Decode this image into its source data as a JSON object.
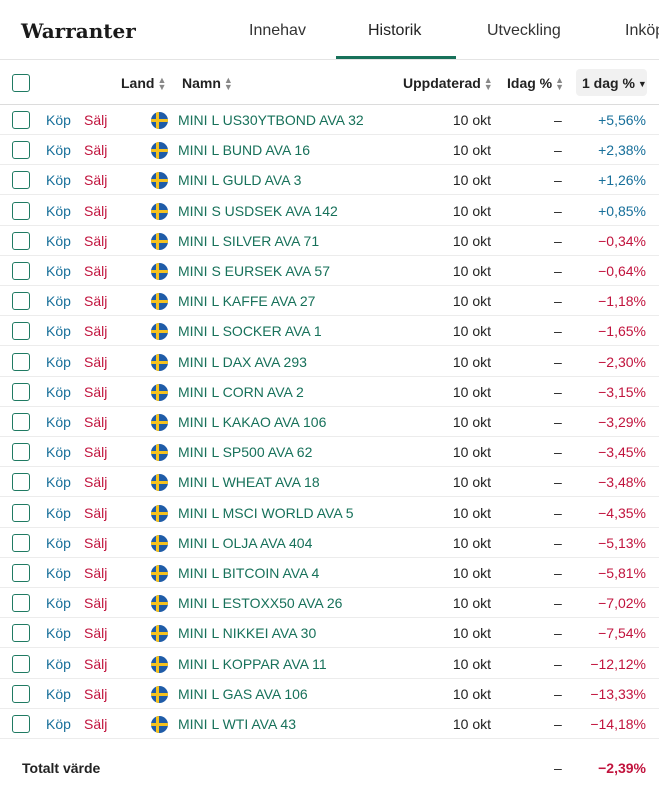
{
  "title": "Warranter",
  "tabs": [
    {
      "label": "Innehav"
    },
    {
      "label": "Historik"
    },
    {
      "label": "Utveckling"
    },
    {
      "label": "Inköp"
    }
  ],
  "columns": {
    "land": "Land",
    "namn": "Namn",
    "uppdaterad": "Uppdaterad",
    "idag": "Idag %",
    "dag1": "1 dag %"
  },
  "buy_label": "Köp",
  "sell_label": "Sälj",
  "rows": [
    {
      "name": "MINI L US30YTBOND AVA 32",
      "updated": "10 okt",
      "idag": "–",
      "day": "+5,56%",
      "sign": "pos"
    },
    {
      "name": "MINI L BUND AVA 16",
      "updated": "10 okt",
      "idag": "–",
      "day": "+2,38%",
      "sign": "pos"
    },
    {
      "name": "MINI L GULD AVA 3",
      "updated": "10 okt",
      "idag": "–",
      "day": "+1,26%",
      "sign": "pos"
    },
    {
      "name": "MINI S USDSEK AVA 142",
      "updated": "10 okt",
      "idag": "–",
      "day": "+0,85%",
      "sign": "pos"
    },
    {
      "name": "MINI L SILVER AVA 71",
      "updated": "10 okt",
      "idag": "–",
      "day": "−0,34%",
      "sign": "neg"
    },
    {
      "name": "MINI S EURSEK AVA 57",
      "updated": "10 okt",
      "idag": "–",
      "day": "−0,64%",
      "sign": "neg"
    },
    {
      "name": "MINI L KAFFE AVA 27",
      "updated": "10 okt",
      "idag": "–",
      "day": "−1,18%",
      "sign": "neg"
    },
    {
      "name": "MINI L SOCKER AVA 1",
      "updated": "10 okt",
      "idag": "–",
      "day": "−1,65%",
      "sign": "neg"
    },
    {
      "name": "MINI L DAX AVA 293",
      "updated": "10 okt",
      "idag": "–",
      "day": "−2,30%",
      "sign": "neg"
    },
    {
      "name": "MINI L CORN AVA 2",
      "updated": "10 okt",
      "idag": "–",
      "day": "−3,15%",
      "sign": "neg"
    },
    {
      "name": "MINI L KAKAO AVA 106",
      "updated": "10 okt",
      "idag": "–",
      "day": "−3,29%",
      "sign": "neg"
    },
    {
      "name": "MINI L SP500 AVA 62",
      "updated": "10 okt",
      "idag": "–",
      "day": "−3,45%",
      "sign": "neg"
    },
    {
      "name": "MINI L WHEAT AVA 18",
      "updated": "10 okt",
      "idag": "–",
      "day": "−3,48%",
      "sign": "neg"
    },
    {
      "name": "MINI L MSCI WORLD AVA 5",
      "updated": "10 okt",
      "idag": "–",
      "day": "−4,35%",
      "sign": "neg"
    },
    {
      "name": "MINI L OLJA AVA 404",
      "updated": "10 okt",
      "idag": "–",
      "day": "−5,13%",
      "sign": "neg"
    },
    {
      "name": "MINI L BITCOIN AVA 4",
      "updated": "10 okt",
      "idag": "–",
      "day": "−5,81%",
      "sign": "neg"
    },
    {
      "name": "MINI L ESTOXX50 AVA 26",
      "updated": "10 okt",
      "idag": "–",
      "day": "−7,02%",
      "sign": "neg"
    },
    {
      "name": "MINI L NIKKEI AVA 30",
      "updated": "10 okt",
      "idag": "–",
      "day": "−7,54%",
      "sign": "neg"
    },
    {
      "name": "MINI L KOPPAR AVA 11",
      "updated": "10 okt",
      "idag": "–",
      "day": "−12,12%",
      "sign": "neg"
    },
    {
      "name": "MINI L GAS AVA 106",
      "updated": "10 okt",
      "idag": "–",
      "day": "−13,33%",
      "sign": "neg"
    },
    {
      "name": "MINI L WTI AVA 43",
      "updated": "10 okt",
      "idag": "–",
      "day": "−14,18%",
      "sign": "neg"
    }
  ],
  "total": {
    "label": "Totalt värde",
    "idag": "–",
    "day": "−2,39%"
  },
  "colors": {
    "accent": "#17715a",
    "buy": "#176f9a",
    "sell": "#c1133d"
  },
  "icons": {
    "flag": "sweden-flag-icon",
    "sort": "sort-icon",
    "sort_active": "sort-desc-icon"
  }
}
